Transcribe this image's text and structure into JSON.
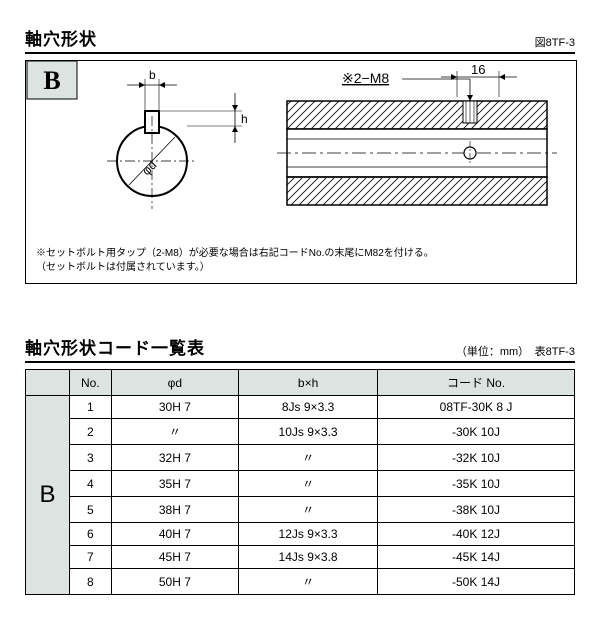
{
  "section1": {
    "title": "軸穴形状",
    "fig_id": "図8TF-3",
    "box_letter": "B",
    "box_letter_bg": "#d8e0dc",
    "dim_b": "b",
    "dim_h": "h",
    "dim_phid": "φd",
    "bolt_label": "※2−M8",
    "dim_16": "16",
    "note_line1": "※セットボルト用タップ（2-M8）が必要な場合は右記コードNo.の末尾にM82を付ける。",
    "note_line2": "（セットボルトは付属されています。）",
    "drawing_stroke": "#000000",
    "hatch_stroke": "#000000"
  },
  "section2": {
    "title": "軸穴形状コード一覧表",
    "unit_label": "（単位：mm）　表8TF-3",
    "group_label": "B",
    "columns": [
      "No.",
      "φd",
      "b×h",
      "コード No."
    ],
    "rows": [
      [
        "1",
        "30H 7",
        "8Js 9×3.3",
        "08TF-30K 8 J"
      ],
      [
        "2",
        "〃",
        "10Js 9×3.3",
        "-30K 10J"
      ],
      [
        "3",
        "32H 7",
        "〃",
        "-32K 10J"
      ],
      [
        "4",
        "35H 7",
        "〃",
        "-35K 10J"
      ],
      [
        "5",
        "38H 7",
        "〃",
        "-38K 10J"
      ],
      [
        "6",
        "40H 7",
        "12Js 9×3.3",
        "-40K 12J"
      ],
      [
        "7",
        "45H 7",
        "14Js 9×3.8",
        "-45K 14J"
      ],
      [
        "8",
        "50H 7",
        "〃",
        "-50K 14J"
      ]
    ]
  }
}
